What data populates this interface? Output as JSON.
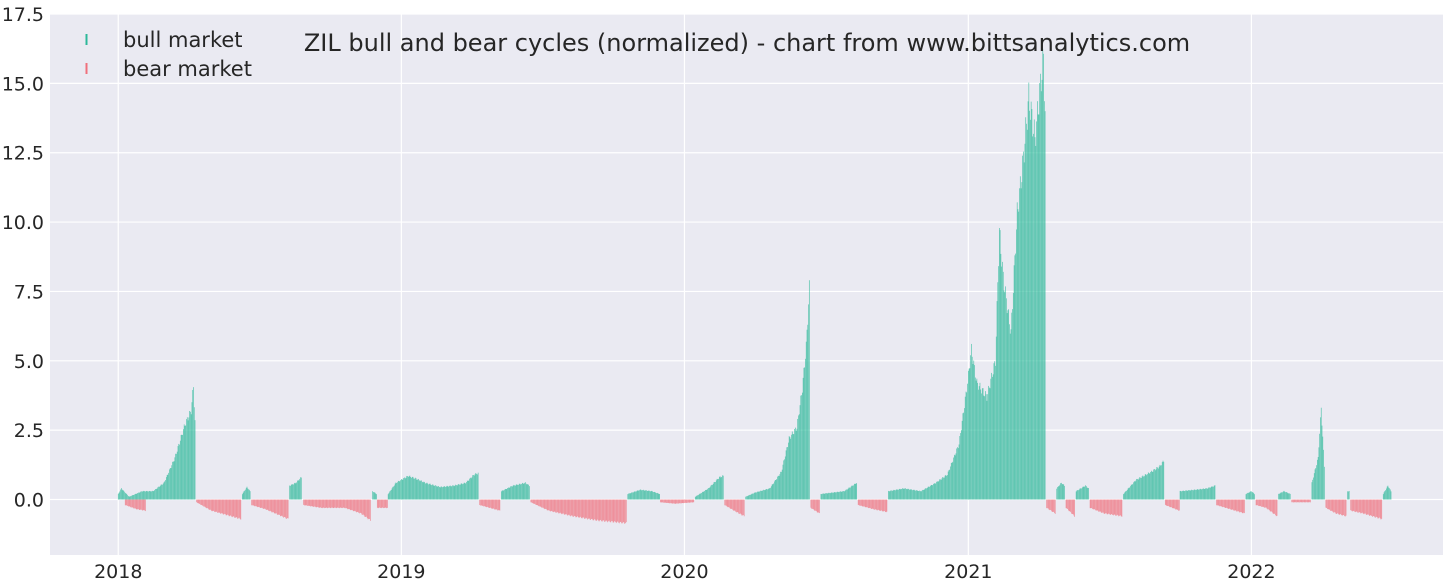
{
  "chart_data": {
    "type": "bar",
    "title": "ZIL bull and bear cycles (normalized)  - chart from www.bittsanalytics.com",
    "xlabel": "",
    "ylabel": "",
    "x_ticks": [
      "2018",
      "2019",
      "2020",
      "2021",
      "2022"
    ],
    "y_ticks": [
      "0.0",
      "2.5",
      "5.0",
      "7.5",
      "10.0",
      "12.5",
      "15.0",
      "17.5"
    ],
    "ylim": [
      -2.0,
      17.5
    ],
    "xlim": [
      "2017-10-05",
      "2022-09-05"
    ],
    "grid": true,
    "legend_position": "top-left",
    "colors": {
      "bull": "#2db89a",
      "bear": "#f0707c",
      "background": "#eaeaf2",
      "grid": "#ffffff"
    },
    "series": [
      {
        "name": "bull market",
        "key": "bull",
        "segments": [
          {
            "start": "2018-01-01",
            "end": "2018-04-10",
            "points": [
              [
                "2018-01-01",
                0.2
              ],
              [
                "2018-01-05",
                0.4
              ],
              [
                "2018-01-15",
                0.1
              ],
              [
                "2018-02-01",
                0.3
              ],
              [
                "2018-02-15",
                0.3
              ],
              [
                "2018-03-01",
                0.6
              ],
              [
                "2018-03-15",
                1.5
              ],
              [
                "2018-03-28",
                2.7
              ],
              [
                "2018-04-05",
                3.2
              ],
              [
                "2018-04-08",
                4.1
              ],
              [
                "2018-04-10",
                2.8
              ]
            ]
          },
          {
            "start": "2018-06-10",
            "end": "2018-06-20",
            "points": [
              [
                "2018-06-10",
                0.2
              ],
              [
                "2018-06-16",
                0.45
              ],
              [
                "2018-06-20",
                0.3
              ]
            ]
          },
          {
            "start": "2018-08-10",
            "end": "2018-08-25",
            "points": [
              [
                "2018-08-10",
                0.5
              ],
              [
                "2018-08-18",
                0.6
              ],
              [
                "2018-08-25",
                0.8
              ]
            ]
          },
          {
            "start": "2018-11-25",
            "end": "2018-11-30",
            "points": [
              [
                "2018-11-25",
                0.3
              ],
              [
                "2018-11-30",
                0.2
              ]
            ]
          },
          {
            "start": "2018-12-15",
            "end": "2019-04-10",
            "points": [
              [
                "2018-12-15",
                0.2
              ],
              [
                "2018-12-25",
                0.6
              ],
              [
                "2019-01-10",
                0.85
              ],
              [
                "2019-01-20",
                0.75
              ],
              [
                "2019-02-01",
                0.6
              ],
              [
                "2019-02-20",
                0.45
              ],
              [
                "2019-03-10",
                0.5
              ],
              [
                "2019-03-25",
                0.6
              ],
              [
                "2019-04-05",
                0.9
              ],
              [
                "2019-04-10",
                0.95
              ]
            ]
          },
          {
            "start": "2019-05-10",
            "end": "2019-06-15",
            "points": [
              [
                "2019-05-10",
                0.3
              ],
              [
                "2019-05-25",
                0.5
              ],
              [
                "2019-06-10",
                0.6
              ],
              [
                "2019-06-15",
                0.5
              ]
            ]
          },
          {
            "start": "2019-10-20",
            "end": "2019-11-30",
            "points": [
              [
                "2019-10-20",
                0.2
              ],
              [
                "2019-11-05",
                0.35
              ],
              [
                "2019-11-20",
                0.3
              ],
              [
                "2019-11-30",
                0.2
              ]
            ]
          },
          {
            "start": "2020-01-15",
            "end": "2020-02-20",
            "points": [
              [
                "2020-01-15",
                0.1
              ],
              [
                "2020-02-01",
                0.4
              ],
              [
                "2020-02-15",
                0.8
              ],
              [
                "2020-02-20",
                0.85
              ]
            ]
          },
          {
            "start": "2020-03-20",
            "end": "2020-06-10",
            "points": [
              [
                "2020-03-20",
                0.1
              ],
              [
                "2020-04-01",
                0.25
              ],
              [
                "2020-04-20",
                0.4
              ],
              [
                "2020-05-05",
                1.0
              ],
              [
                "2020-05-15",
                2.2
              ],
              [
                "2020-05-25",
                2.6
              ],
              [
                "2020-06-01",
                4.0
              ],
              [
                "2020-06-06",
                5.5
              ],
              [
                "2020-06-10",
                7.6
              ]
            ]
          },
          {
            "start": "2020-06-25",
            "end": "2020-08-10",
            "points": [
              [
                "2020-06-25",
                0.2
              ],
              [
                "2020-07-10",
                0.25
              ],
              [
                "2020-07-25",
                0.3
              ],
              [
                "2020-08-10",
                0.6
              ]
            ]
          },
          {
            "start": "2020-09-20",
            "end": "2021-04-10",
            "points": [
              [
                "2020-09-20",
                0.3
              ],
              [
                "2020-10-10",
                0.4
              ],
              [
                "2020-11-01",
                0.3
              ],
              [
                "2020-11-20",
                0.6
              ],
              [
                "2020-12-05",
                0.9
              ],
              [
                "2020-12-20",
                2.0
              ],
              [
                "2020-12-30",
                4.0
              ],
              [
                "2021-01-05",
                5.4
              ],
              [
                "2021-01-12",
                4.2
              ],
              [
                "2021-01-25",
                3.7
              ],
              [
                "2021-02-05",
                5.0
              ],
              [
                "2021-02-10",
                9.7
              ],
              [
                "2021-02-15",
                8.0
              ],
              [
                "2021-02-25",
                6.0
              ],
              [
                "2021-03-05",
                10.3
              ],
              [
                "2021-03-12",
                12.0
              ],
              [
                "2021-03-20",
                14.5
              ],
              [
                "2021-03-28",
                13.0
              ],
              [
                "2021-04-05",
                15.2
              ],
              [
                "2021-04-08",
                15.9
              ],
              [
                "2021-04-10",
                14.0
              ]
            ]
          },
          {
            "start": "2021-04-25",
            "end": "2021-05-05",
            "points": [
              [
                "2021-04-25",
                0.4
              ],
              [
                "2021-05-01",
                0.6
              ],
              [
                "2021-05-05",
                0.5
              ]
            ]
          },
          {
            "start": "2021-05-20",
            "end": "2021-06-05",
            "points": [
              [
                "2021-05-20",
                0.3
              ],
              [
                "2021-06-01",
                0.5
              ],
              [
                "2021-06-05",
                0.4
              ]
            ]
          },
          {
            "start": "2021-07-20",
            "end": "2021-09-10",
            "points": [
              [
                "2021-07-20",
                0.2
              ],
              [
                "2021-08-05",
                0.7
              ],
              [
                "2021-08-25",
                1.0
              ],
              [
                "2021-09-05",
                1.2
              ],
              [
                "2021-09-10",
                1.4
              ]
            ]
          },
          {
            "start": "2021-10-01",
            "end": "2021-11-15",
            "points": [
              [
                "2021-10-01",
                0.3
              ],
              [
                "2021-10-20",
                0.35
              ],
              [
                "2021-11-05",
                0.4
              ],
              [
                "2021-11-15",
                0.5
              ]
            ]
          },
          {
            "start": "2021-12-25",
            "end": "2022-01-05",
            "points": [
              [
                "2021-12-25",
                0.2
              ],
              [
                "2022-01-01",
                0.3
              ],
              [
                "2022-01-05",
                0.2
              ]
            ]
          },
          {
            "start": "2022-02-05",
            "end": "2022-02-20",
            "points": [
              [
                "2022-02-05",
                0.2
              ],
              [
                "2022-02-12",
                0.3
              ],
              [
                "2022-02-20",
                0.2
              ]
            ]
          },
          {
            "start": "2022-03-20",
            "end": "2022-04-05",
            "points": [
              [
                "2022-03-20",
                0.6
              ],
              [
                "2022-03-28",
                1.5
              ],
              [
                "2022-04-01",
                3.3
              ],
              [
                "2022-04-05",
                1.2
              ]
            ]
          },
          {
            "start": "2022-05-05",
            "end": "2022-05-07",
            "points": [
              [
                "2022-05-05",
                0.3
              ],
              [
                "2022-05-07",
                0.3
              ]
            ]
          },
          {
            "start": "2022-06-20",
            "end": "2022-06-30",
            "points": [
              [
                "2022-06-20",
                0.2
              ],
              [
                "2022-06-26",
                0.5
              ],
              [
                "2022-06-30",
                0.3
              ]
            ]
          }
        ]
      },
      {
        "name": "bear market",
        "key": "bear",
        "segments": [
          {
            "start": "2018-01-10",
            "end": "2018-02-05",
            "points": [
              [
                "2018-01-10",
                -0.2
              ],
              [
                "2018-01-25",
                -0.35
              ],
              [
                "2018-02-05",
                -0.4
              ]
            ]
          },
          {
            "start": "2018-04-12",
            "end": "2018-06-08",
            "points": [
              [
                "2018-04-12",
                -0.1
              ],
              [
                "2018-05-01",
                -0.4
              ],
              [
                "2018-05-20",
                -0.55
              ],
              [
                "2018-06-08",
                -0.7
              ]
            ]
          },
          {
            "start": "2018-06-22",
            "end": "2018-08-08",
            "points": [
              [
                "2018-06-22",
                -0.2
              ],
              [
                "2018-07-10",
                -0.35
              ],
              [
                "2018-08-08",
                -0.7
              ]
            ]
          },
          {
            "start": "2018-08-28",
            "end": "2018-11-22",
            "points": [
              [
                "2018-08-28",
                -0.2
              ],
              [
                "2018-09-20",
                -0.3
              ],
              [
                "2018-10-20",
                -0.3
              ],
              [
                "2018-11-10",
                -0.5
              ],
              [
                "2018-11-22",
                -0.75
              ]
            ]
          },
          {
            "start": "2018-12-01",
            "end": "2018-12-14",
            "points": [
              [
                "2018-12-01",
                -0.3
              ],
              [
                "2018-12-14",
                -0.3
              ]
            ]
          },
          {
            "start": "2019-04-12",
            "end": "2019-05-08",
            "points": [
              [
                "2019-04-12",
                -0.2
              ],
              [
                "2019-04-25",
                -0.3
              ],
              [
                "2019-05-08",
                -0.4
              ]
            ]
          },
          {
            "start": "2019-06-17",
            "end": "2019-10-18",
            "points": [
              [
                "2019-06-17",
                -0.1
              ],
              [
                "2019-07-10",
                -0.4
              ],
              [
                "2019-08-10",
                -0.6
              ],
              [
                "2019-09-10",
                -0.75
              ],
              [
                "2019-10-18",
                -0.85
              ]
            ]
          },
          {
            "start": "2019-12-01",
            "end": "2020-01-13",
            "points": [
              [
                "2019-12-01",
                -0.1
              ],
              [
                "2019-12-20",
                -0.15
              ],
              [
                "2020-01-13",
                -0.1
              ]
            ]
          },
          {
            "start": "2020-02-22",
            "end": "2020-03-18",
            "points": [
              [
                "2020-02-22",
                -0.2
              ],
              [
                "2020-03-05",
                -0.4
              ],
              [
                "2020-03-18",
                -0.6
              ]
            ]
          },
          {
            "start": "2020-06-12",
            "end": "2020-06-23",
            "points": [
              [
                "2020-06-12",
                -0.3
              ],
              [
                "2020-06-23",
                -0.5
              ]
            ]
          },
          {
            "start": "2020-08-12",
            "end": "2020-09-18",
            "points": [
              [
                "2020-08-12",
                -0.2
              ],
              [
                "2020-09-01",
                -0.35
              ],
              [
                "2020-09-18",
                -0.45
              ]
            ]
          },
          {
            "start": "2021-04-12",
            "end": "2021-04-23",
            "points": [
              [
                "2021-04-12",
                -0.3
              ],
              [
                "2021-04-23",
                -0.5
              ]
            ]
          },
          {
            "start": "2021-05-07",
            "end": "2021-05-18",
            "points": [
              [
                "2021-05-07",
                -0.3
              ],
              [
                "2021-05-18",
                -0.6
              ]
            ]
          },
          {
            "start": "2021-06-07",
            "end": "2021-07-18",
            "points": [
              [
                "2021-06-07",
                -0.3
              ],
              [
                "2021-06-25",
                -0.5
              ],
              [
                "2021-07-18",
                -0.6
              ]
            ]
          },
          {
            "start": "2021-09-12",
            "end": "2021-09-30",
            "points": [
              [
                "2021-09-12",
                -0.2
              ],
              [
                "2021-09-30",
                -0.4
              ]
            ]
          },
          {
            "start": "2021-11-17",
            "end": "2021-12-23",
            "points": [
              [
                "2021-11-17",
                -0.2
              ],
              [
                "2021-12-05",
                -0.35
              ],
              [
                "2021-12-23",
                -0.5
              ]
            ]
          },
          {
            "start": "2022-01-07",
            "end": "2022-02-03",
            "points": [
              [
                "2022-01-07",
                -0.2
              ],
              [
                "2022-01-20",
                -0.3
              ],
              [
                "2022-02-03",
                -0.6
              ]
            ]
          },
          {
            "start": "2022-02-22",
            "end": "2022-03-18",
            "points": [
              [
                "2022-02-22",
                -0.1
              ],
              [
                "2022-03-18",
                -0.1
              ]
            ]
          },
          {
            "start": "2022-04-07",
            "end": "2022-05-03",
            "points": [
              [
                "2022-04-07",
                -0.3
              ],
              [
                "2022-04-20",
                -0.5
              ],
              [
                "2022-05-03",
                -0.6
              ]
            ]
          },
          {
            "start": "2022-05-09",
            "end": "2022-06-18",
            "points": [
              [
                "2022-05-09",
                -0.4
              ],
              [
                "2022-05-25",
                -0.5
              ],
              [
                "2022-06-18",
                -0.7
              ]
            ]
          }
        ]
      }
    ]
  }
}
